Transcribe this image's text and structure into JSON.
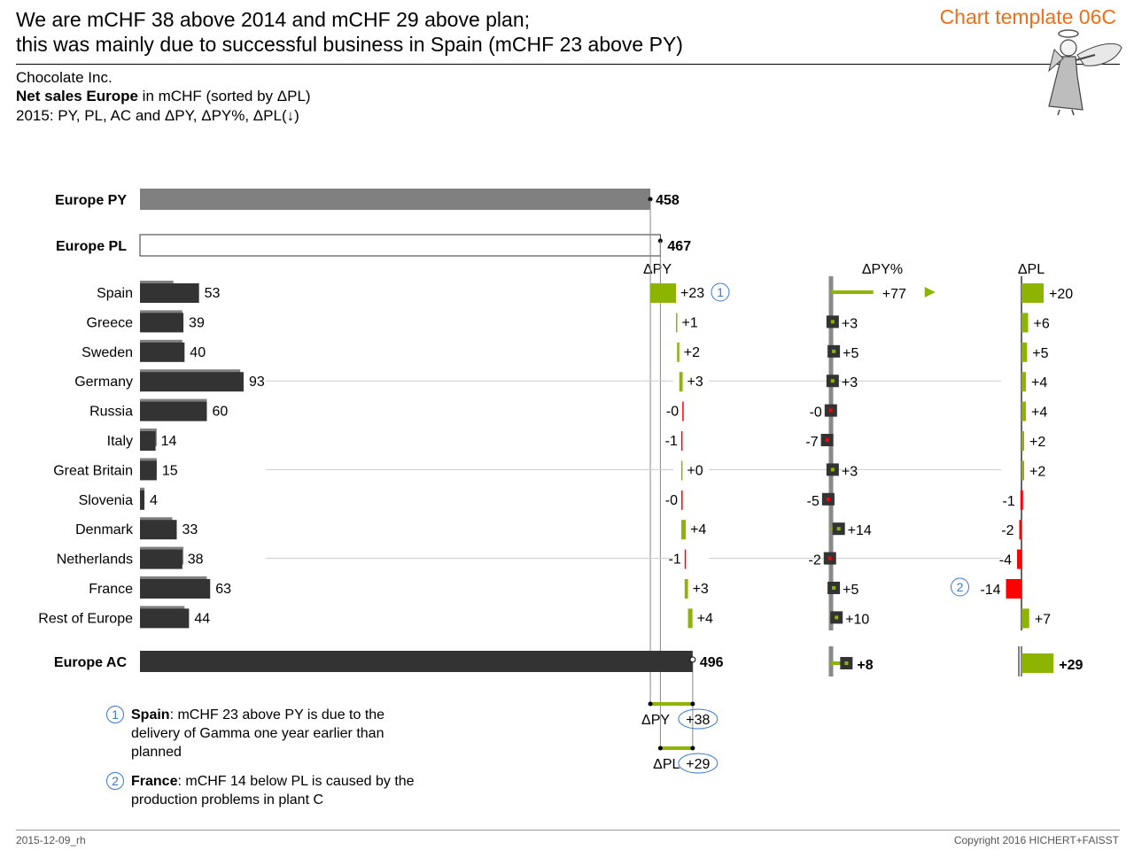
{
  "header": {
    "title_line1": "We are mCHF 38 above 2014 and mCHF 29 above plan;",
    "title_line2": "this was mainly due to successful business in Spain (mCHF 23 above PY)",
    "template_label": "Chart template 06C"
  },
  "subtitle": {
    "company": "Chocolate Inc.",
    "measure_bold": "Net sales Europe",
    "measure_rest": " in mCHF (sorted by ΔPL)",
    "line3": "2015: PY, PL, AC and ΔPY, ΔPY%, ΔPL(↓)"
  },
  "notes": [
    {
      "num": "1",
      "bold": "Spain",
      "text": ": mCHF 23 above PY is due to the delivery of Gamma one year earlier than planned"
    },
    {
      "num": "2",
      "bold": "France",
      "text": ": mCHF 14 below PL is caused by the production problems in plant C"
    }
  ],
  "footer": {
    "left": "2015-12-09_rh",
    "right": "Copyright 2016 HICHERT+FAISST"
  },
  "colors": {
    "ac": "#333333",
    "py": "#808080",
    "positive": "#8cb400",
    "negative": "#ff0000",
    "notes": "#3a78c9",
    "template": "#ee6e1a"
  },
  "chart_data": {
    "type": "bar",
    "totals": {
      "py": {
        "label": "Europe  PY",
        "value": 458,
        "value_text": "458"
      },
      "pl": {
        "label": "Europe  PL",
        "value": 467,
        "value_text": "467"
      },
      "ac": {
        "label": "Europe  AC",
        "value": 496,
        "value_text": "496"
      }
    },
    "columns": {
      "dpy": "ΔPY",
      "dpy_pct": "ΔPY%",
      "dpl": "ΔPL"
    },
    "rows": [
      {
        "name": "Spain",
        "ac": 53,
        "py": 30,
        "dpy": 23,
        "dpy_text": "+23",
        "dpy_pct": 77,
        "dpy_pct_text": "+77",
        "dpy_pct_arrow": true,
        "dpl": 20,
        "dpl_text": "+20",
        "note": "1",
        "note_col": "dpy",
        "grid": false
      },
      {
        "name": "Greece",
        "ac": 39,
        "py": 38,
        "dpy": 1,
        "dpy_text": "+1",
        "dpy_pct": 3,
        "dpy_pct_text": "+3",
        "dpl": 6,
        "dpl_text": "+6",
        "grid": false
      },
      {
        "name": "Sweden",
        "ac": 40,
        "py": 38,
        "dpy": 2,
        "dpy_text": "+2",
        "dpy_pct": 5,
        "dpy_pct_text": "+5",
        "dpl": 5,
        "dpl_text": "+5",
        "grid": false
      },
      {
        "name": "Germany",
        "ac": 93,
        "py": 90,
        "dpy": 3,
        "dpy_text": "+3",
        "dpy_pct": 3,
        "dpy_pct_text": "+3",
        "dpl": 4,
        "dpl_text": "+4",
        "grid": true
      },
      {
        "name": "Russia",
        "ac": 60,
        "py": 60,
        "dpy": -0.3,
        "dpy_text": "-0",
        "dpy_pct": -0.3,
        "dpy_pct_text": "-0",
        "dpl": 4,
        "dpl_text": "+4",
        "grid": false
      },
      {
        "name": "Italy",
        "ac": 14,
        "py": 15,
        "dpy": -1,
        "dpy_text": "-1",
        "dpy_pct": -7,
        "dpy_pct_text": "-7",
        "dpl": 2,
        "dpl_text": "+2",
        "grid": false
      },
      {
        "name": "Great Britain",
        "ac": 15,
        "py": 15,
        "dpy": 0.3,
        "dpy_text": "+0",
        "dpy_pct": 3,
        "dpy_pct_text": "+3",
        "dpl": 2,
        "dpl_text": "+2",
        "grid": true
      },
      {
        "name": "Slovenia",
        "ac": 4,
        "py": 4,
        "dpy": -0.2,
        "dpy_text": "-0",
        "dpy_pct": -5,
        "dpy_pct_text": "-5",
        "dpl": -1,
        "dpl_text": "-1",
        "grid": false
      },
      {
        "name": "Denmark",
        "ac": 33,
        "py": 29,
        "dpy": 4,
        "dpy_text": "+4",
        "dpy_pct": 14,
        "dpy_pct_text": "+14",
        "dpl": -2,
        "dpl_text": "-2",
        "grid": false
      },
      {
        "name": "Netherlands",
        "ac": 38,
        "py": 39,
        "dpy": -1,
        "dpy_text": "-1",
        "dpy_pct": -2,
        "dpy_pct_text": "-2",
        "dpl": -4,
        "dpl_text": "-4",
        "grid": true
      },
      {
        "name": "France",
        "ac": 63,
        "py": 60,
        "dpy": 3,
        "dpy_text": "+3",
        "dpy_pct": 5,
        "dpy_pct_text": "+5",
        "dpl": -14,
        "dpl_text": "-14",
        "note": "2",
        "note_col": "dpl",
        "grid": false
      },
      {
        "name": "Rest of Europe",
        "ac": 44,
        "py": 40,
        "dpy": 4,
        "dpy_text": "+4",
        "dpy_pct": 10,
        "dpy_pct_text": "+10",
        "dpl": 7,
        "dpl_text": "+7",
        "grid": false
      }
    ],
    "total_deltas": {
      "dpy_pct": 8,
      "dpy_pct_text": "+8",
      "dpl": 29,
      "dpl_text": "+29"
    },
    "summary": [
      {
        "label": "ΔPY",
        "value": 38,
        "text": "+38",
        "from": 458
      },
      {
        "label": "ΔPL",
        "value": 29,
        "text": "+29",
        "from": 467
      }
    ]
  }
}
